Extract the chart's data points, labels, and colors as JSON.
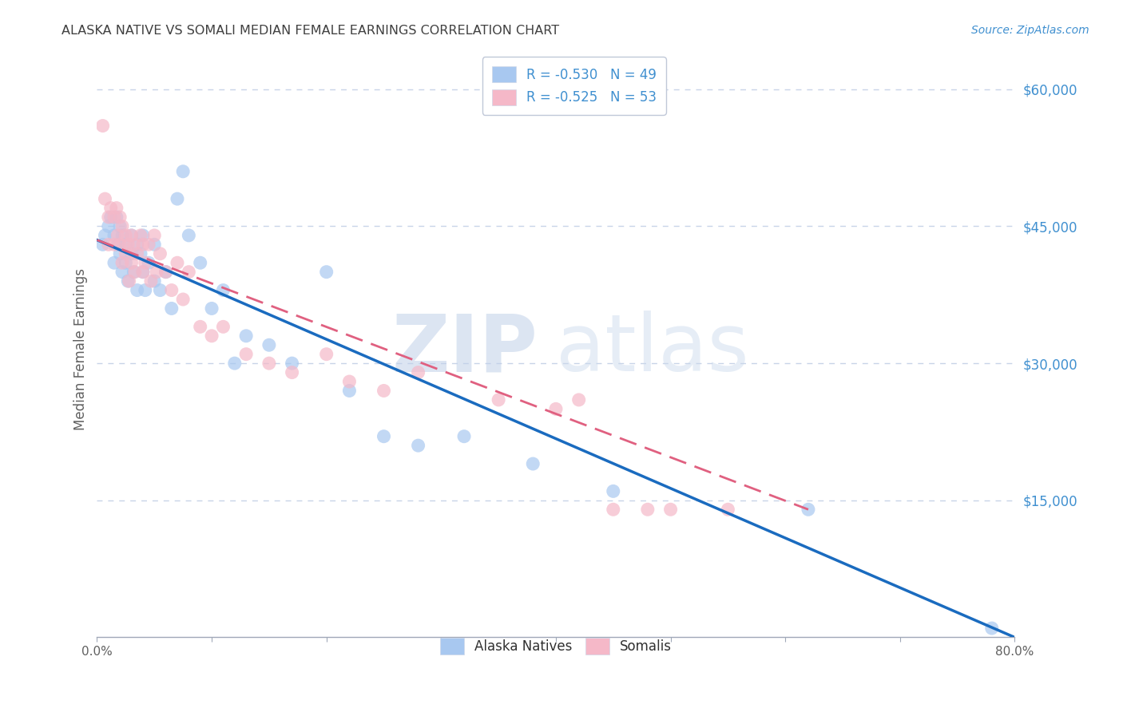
{
  "title": "ALASKA NATIVE VS SOMALI MEDIAN FEMALE EARNINGS CORRELATION CHART",
  "source": "Source: ZipAtlas.com",
  "ylabel": "Median Female Earnings",
  "watermark_zip": "ZIP",
  "watermark_atlas": "atlas",
  "xlim": [
    0.0,
    0.8
  ],
  "ylim": [
    0,
    63000
  ],
  "yticks": [
    0,
    15000,
    30000,
    45000,
    60000
  ],
  "ytick_labels": [
    "",
    "$15,000",
    "$30,000",
    "$45,000",
    "$60,000"
  ],
  "xticks": [
    0.0,
    0.1,
    0.2,
    0.3,
    0.4,
    0.5,
    0.6,
    0.7,
    0.8
  ],
  "xtick_labels": [
    "0.0%",
    "",
    "",
    "",
    "",
    "",
    "",
    "",
    "80.0%"
  ],
  "legend_labels": [
    "R = -0.530   N = 49",
    "R = -0.525   N = 53"
  ],
  "legend_bottom_labels": [
    "Alaska Natives",
    "Somalis"
  ],
  "blue_color": "#a8c8f0",
  "pink_color": "#f5b8c8",
  "blue_line_color": "#1a6bbf",
  "pink_line_color": "#e06080",
  "background_color": "#ffffff",
  "grid_color": "#c8d4e8",
  "title_color": "#404040",
  "axis_label_color": "#606060",
  "right_tick_color": "#4090d0",
  "alaska_natives_x": [
    0.005,
    0.007,
    0.01,
    0.012,
    0.015,
    0.015,
    0.017,
    0.018,
    0.02,
    0.02,
    0.022,
    0.022,
    0.025,
    0.025,
    0.027,
    0.03,
    0.03,
    0.032,
    0.035,
    0.035,
    0.038,
    0.04,
    0.04,
    0.042,
    0.045,
    0.05,
    0.05,
    0.055,
    0.06,
    0.065,
    0.07,
    0.075,
    0.08,
    0.09,
    0.1,
    0.11,
    0.12,
    0.13,
    0.15,
    0.17,
    0.2,
    0.22,
    0.25,
    0.28,
    0.32,
    0.38,
    0.45,
    0.62,
    0.78
  ],
  "alaska_natives_y": [
    43000,
    44000,
    45000,
    46000,
    44000,
    41000,
    46000,
    43000,
    45000,
    42000,
    44000,
    40000,
    43000,
    41000,
    39000,
    44000,
    42000,
    40000,
    43000,
    38000,
    42000,
    44000,
    40000,
    38000,
    41000,
    43000,
    39000,
    38000,
    40000,
    36000,
    48000,
    51000,
    44000,
    41000,
    36000,
    38000,
    30000,
    33000,
    32000,
    30000,
    40000,
    27000,
    22000,
    21000,
    22000,
    19000,
    16000,
    14000,
    1000
  ],
  "somalis_x": [
    0.005,
    0.007,
    0.01,
    0.01,
    0.012,
    0.015,
    0.015,
    0.017,
    0.018,
    0.02,
    0.02,
    0.022,
    0.022,
    0.025,
    0.025,
    0.027,
    0.028,
    0.03,
    0.03,
    0.032,
    0.033,
    0.035,
    0.038,
    0.04,
    0.04,
    0.042,
    0.045,
    0.047,
    0.05,
    0.052,
    0.055,
    0.06,
    0.065,
    0.07,
    0.075,
    0.08,
    0.09,
    0.1,
    0.11,
    0.13,
    0.15,
    0.17,
    0.2,
    0.22,
    0.25,
    0.28,
    0.35,
    0.4,
    0.42,
    0.45,
    0.48,
    0.5,
    0.55
  ],
  "somalis_y": [
    56000,
    48000,
    46000,
    43000,
    47000,
    46000,
    43000,
    47000,
    44000,
    46000,
    43000,
    45000,
    41000,
    44000,
    42000,
    43000,
    39000,
    44000,
    41000,
    43000,
    40000,
    42000,
    44000,
    43000,
    40000,
    41000,
    43000,
    39000,
    44000,
    40000,
    42000,
    40000,
    38000,
    41000,
    37000,
    40000,
    34000,
    33000,
    34000,
    31000,
    30000,
    29000,
    31000,
    28000,
    27000,
    29000,
    26000,
    25000,
    26000,
    14000,
    14000,
    14000,
    14000
  ],
  "blue_line_x0": 0.0,
  "blue_line_y0": 43500,
  "blue_line_x1": 0.8,
  "blue_line_y1": 0,
  "pink_line_x0": 0.0,
  "pink_line_y0": 43500,
  "pink_line_x1": 0.62,
  "pink_line_y1": 14000
}
